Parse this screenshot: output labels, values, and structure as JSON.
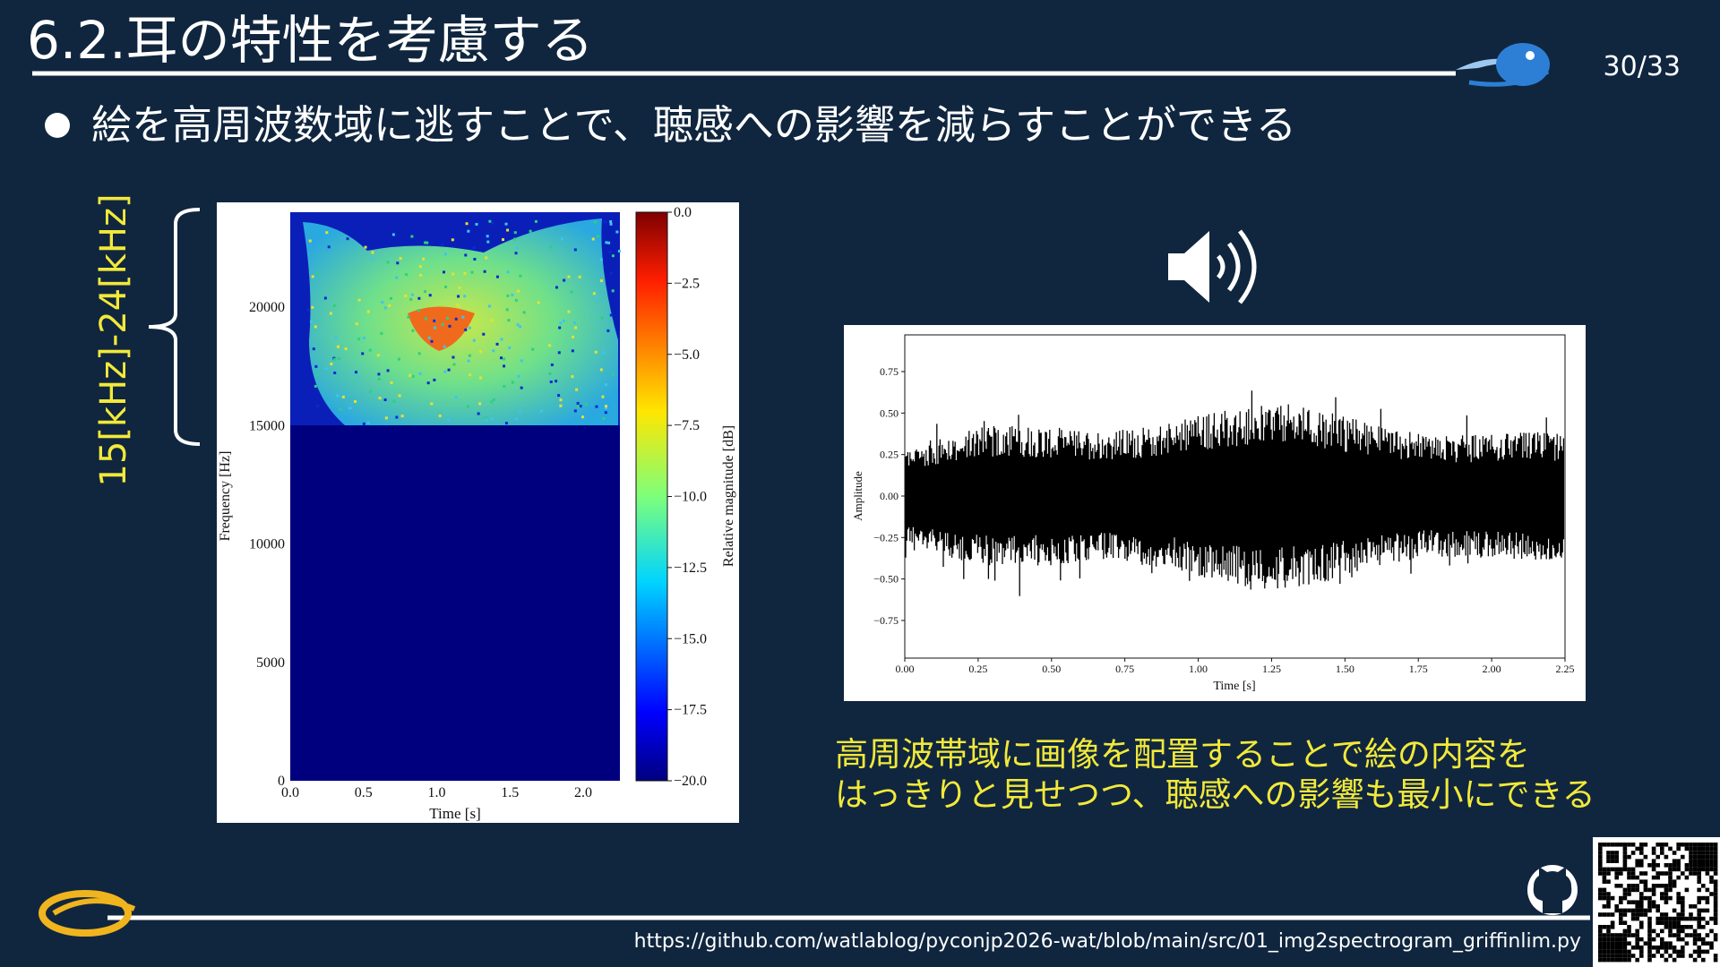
{
  "header": {
    "title": "6.2.耳の特性を考慮する",
    "page": "30/33"
  },
  "bullets": [
    "絵を高周波数域に逃すことで、聴感への影響を減らすことができる"
  ],
  "annotation": {
    "range_label": "15[kHz]-24[kHz]"
  },
  "spectrogram": {
    "y_axis_label": "Frequency [Hz]",
    "x_axis_label": "Time [s]",
    "colorbar_label": "Relative magnitude [dB]",
    "yticks": [
      "0",
      "5000",
      "10000",
      "15000",
      "20000"
    ],
    "xticks": [
      "0.0",
      "0.5",
      "1.0",
      "1.5",
      "2.0"
    ],
    "colorbar_ticks": [
      "0.0",
      "−2.5",
      "−5.0",
      "−7.5",
      "−10.0",
      "−12.5",
      "−15.0",
      "−17.5",
      "−20.0"
    ]
  },
  "waveform": {
    "y_axis_label": "Amplitude",
    "x_axis_label": "Time [s]",
    "yticks": [
      "0.75",
      "0.50",
      "0.25",
      "0.00",
      "−0.25",
      "−0.50",
      "−0.75"
    ],
    "xticks": [
      "0.00",
      "0.25",
      "0.50",
      "0.75",
      "1.00",
      "1.25",
      "1.50",
      "1.75",
      "2.00",
      "2.25"
    ]
  },
  "caption": {
    "lines": [
      "高周波帯域に画像を配置することで絵の内容を",
      "はっきりと見せつつ、聴感への影響も最小にできる"
    ]
  },
  "footer": {
    "url": "https://github.com/watlablog/pyconjp2026-wat/blob/main/src/01_img2spectrogram_griffinlim.py"
  }
}
